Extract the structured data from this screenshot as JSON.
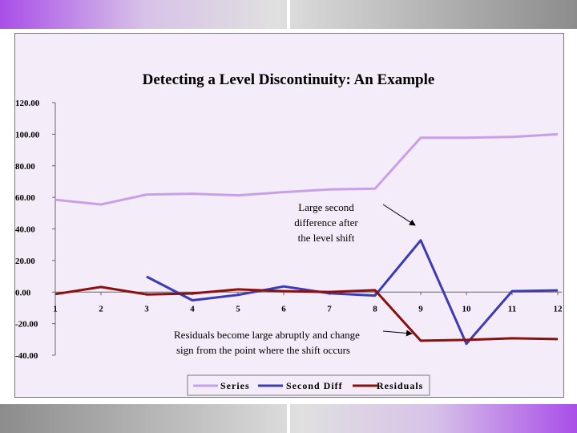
{
  "chart_data": {
    "type": "line",
    "title": "Detecting a Level Discontinuity: An Example",
    "xlabel": "",
    "ylabel": "",
    "categories": [
      "1",
      "2",
      "3",
      "4",
      "5",
      "6",
      "7",
      "8",
      "9",
      "10",
      "11",
      "12"
    ],
    "yticks": [
      "120.00",
      "100.00",
      "80.00",
      "60.00",
      "40.00",
      "20.00",
      "0.00",
      "-20.00",
      "-40.00"
    ],
    "ylim": [
      -40,
      120
    ],
    "grid": false,
    "legend_position": "bottom",
    "series": [
      {
        "name": "Series",
        "color": "#c8a0e8",
        "values": [
          58.5,
          55.5,
          61.8,
          62.3,
          61.3,
          63.3,
          65,
          65.5,
          97.8,
          97.8,
          98.3,
          100
        ]
      },
      {
        "name": "Second Diff",
        "color": "#3b3bb8",
        "values": [
          null,
          null,
          9.8,
          -5.2,
          -1.8,
          3.6,
          -0.8,
          -2.2,
          32.8,
          -32.8,
          0.6,
          1.1
        ]
      },
      {
        "name": "Residuals",
        "color": "#8b1010",
        "values": [
          -1.3,
          3.2,
          -1.5,
          -0.9,
          1.7,
          0.6,
          0.1,
          1.2,
          -30.8,
          -30.3,
          -29.3,
          -29.8
        ]
      }
    ],
    "annotations": [
      {
        "id": "shift",
        "lines": [
          "Large second",
          "difference after",
          "the level shift"
        ]
      },
      {
        "id": "residuals",
        "lines": [
          "Residuals become large abruptly and change",
          "sign from the point where the shift occurs"
        ]
      }
    ]
  }
}
